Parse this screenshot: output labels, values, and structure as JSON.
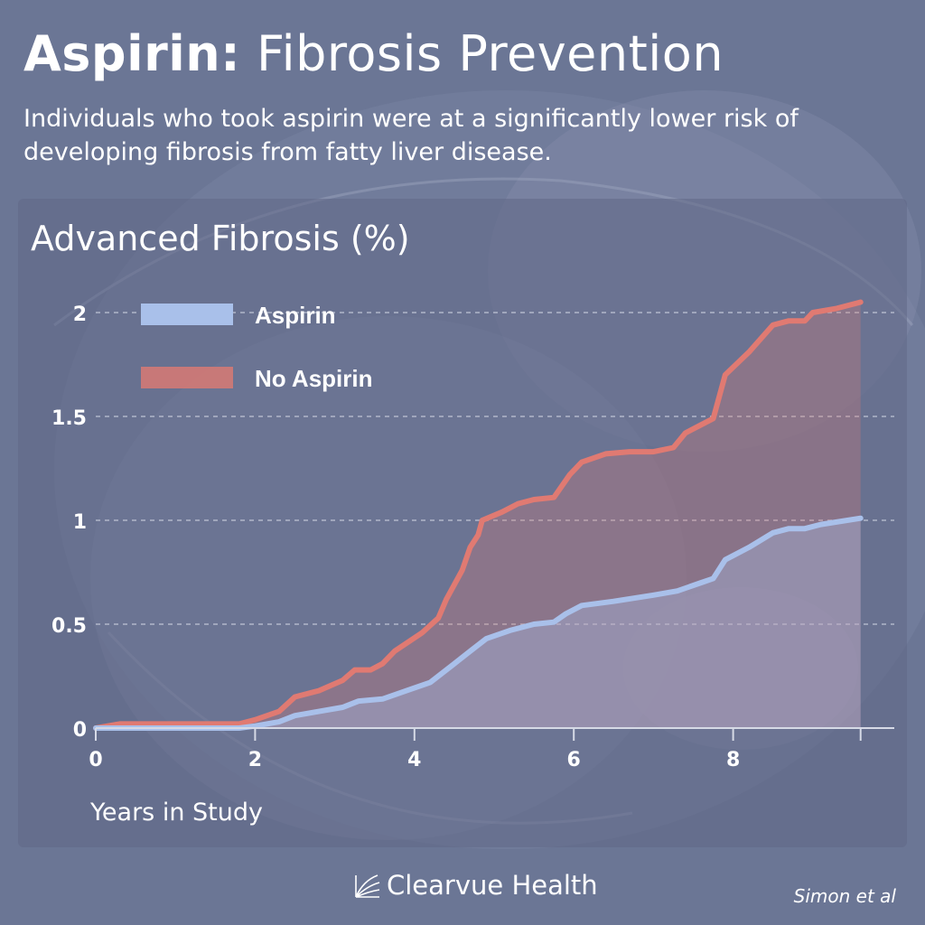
{
  "header": {
    "title_bold": "Aspirin:",
    "title_rest": "Fibrosis Prevention",
    "subtitle": "Individuals who took aspirin were at a significantly lower risk of developing fibrosis from fatty liver disease."
  },
  "footer": {
    "brand": "Clearvue Health",
    "source": "Simon et al"
  },
  "colors": {
    "aspirin": "#a9c0ea",
    "no_aspirin": "#e07a72"
  },
  "chart_data": {
    "type": "area",
    "title": "Advanced Fibrosis (%)",
    "xlabel": "Years in Study",
    "ylabel": "",
    "xlim": [
      0,
      9.6
    ],
    "ylim": [
      0,
      2
    ],
    "xticks": [
      0,
      2,
      4,
      6,
      8
    ],
    "yticks": [
      0,
      0.5,
      1,
      1.5,
      2
    ],
    "yticklabels": [
      "0",
      "0.5",
      "1",
      "1.5",
      "2"
    ],
    "grid": "horizontal dashed",
    "legend": "top-left",
    "series": [
      {
        "name": "Aspirin",
        "points": [
          [
            0,
            0
          ],
          [
            0.3,
            0
          ],
          [
            1,
            0
          ],
          [
            1.8,
            0
          ],
          [
            2,
            0.01
          ],
          [
            2.3,
            0.03
          ],
          [
            2.5,
            0.06
          ],
          [
            2.8,
            0.08
          ],
          [
            3.1,
            0.1
          ],
          [
            3.3,
            0.13
          ],
          [
            3.6,
            0.14
          ],
          [
            3.9,
            0.18
          ],
          [
            4.2,
            0.22
          ],
          [
            4.5,
            0.31
          ],
          [
            4.7,
            0.37
          ],
          [
            4.9,
            0.43
          ],
          [
            5.2,
            0.47
          ],
          [
            5.5,
            0.5
          ],
          [
            5.75,
            0.51
          ],
          [
            5.9,
            0.55
          ],
          [
            6.1,
            0.59
          ],
          [
            6.5,
            0.61
          ],
          [
            7.0,
            0.64
          ],
          [
            7.3,
            0.66
          ],
          [
            7.6,
            0.7
          ],
          [
            7.75,
            0.72
          ],
          [
            7.9,
            0.81
          ],
          [
            8.2,
            0.87
          ],
          [
            8.5,
            0.94
          ],
          [
            8.7,
            0.96
          ],
          [
            8.9,
            0.96
          ],
          [
            9.1,
            0.98
          ],
          [
            9.6,
            1.01
          ]
        ]
      },
      {
        "name": "No Aspirin",
        "points": [
          [
            0,
            0
          ],
          [
            0.3,
            0.02
          ],
          [
            1,
            0.02
          ],
          [
            1.8,
            0.02
          ],
          [
            2,
            0.04
          ],
          [
            2.3,
            0.08
          ],
          [
            2.5,
            0.15
          ],
          [
            2.8,
            0.18
          ],
          [
            3.1,
            0.23
          ],
          [
            3.25,
            0.28
          ],
          [
            3.45,
            0.28
          ],
          [
            3.6,
            0.31
          ],
          [
            3.75,
            0.37
          ],
          [
            4.1,
            0.46
          ],
          [
            4.3,
            0.53
          ],
          [
            4.4,
            0.62
          ],
          [
            4.6,
            0.76
          ],
          [
            4.7,
            0.87
          ],
          [
            4.8,
            0.93
          ],
          [
            4.85,
            1.0
          ],
          [
            5.1,
            1.04
          ],
          [
            5.3,
            1.08
          ],
          [
            5.5,
            1.1
          ],
          [
            5.75,
            1.11
          ],
          [
            5.95,
            1.22
          ],
          [
            6.1,
            1.28
          ],
          [
            6.4,
            1.32
          ],
          [
            6.7,
            1.33
          ],
          [
            7.0,
            1.33
          ],
          [
            7.25,
            1.35
          ],
          [
            7.4,
            1.42
          ],
          [
            7.6,
            1.46
          ],
          [
            7.75,
            1.49
          ],
          [
            7.9,
            1.7
          ],
          [
            8.2,
            1.81
          ],
          [
            8.5,
            1.94
          ],
          [
            8.7,
            1.96
          ],
          [
            8.9,
            1.96
          ],
          [
            9.0,
            2.0
          ],
          [
            9.3,
            2.02
          ],
          [
            9.6,
            2.05
          ]
        ]
      }
    ]
  }
}
